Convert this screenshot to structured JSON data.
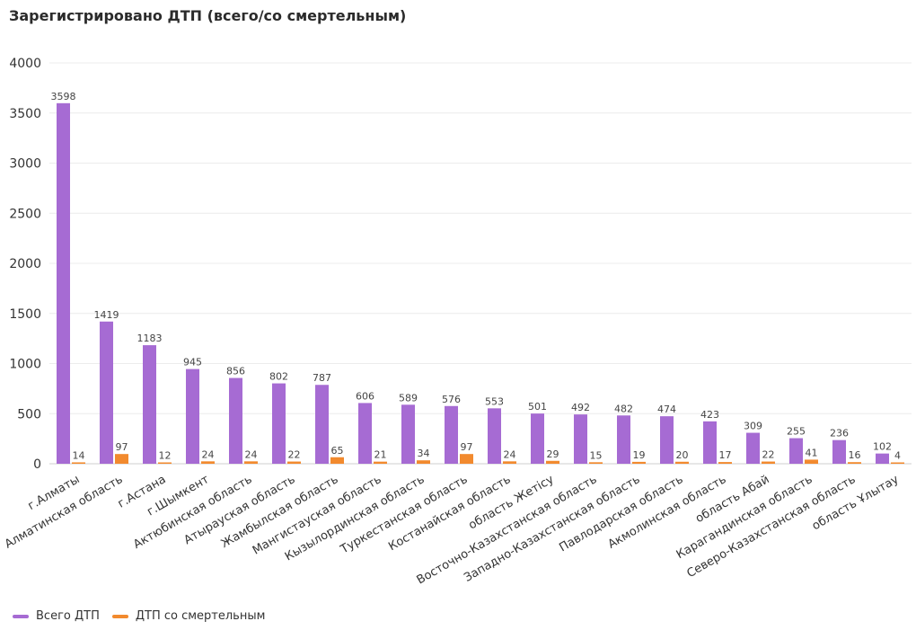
{
  "chart_data": {
    "type": "bar",
    "title": "Зарегистрировано ДТП (всего/со смертельным)",
    "ylim": [
      0,
      4000
    ],
    "yticks": [
      0,
      500,
      1000,
      1500,
      2000,
      2500,
      3000,
      3500,
      4000
    ],
    "grid": true,
    "legend_position": "bottom-left",
    "categories": [
      "г.Алматы",
      "Алматинская область",
      "г.Астана",
      "г.Шымкент",
      "Актюбинская область",
      "Атырауская область",
      "Жамбылская область",
      "Мангистауская область",
      "Кызылординская область",
      "Туркестанская область",
      "Костанайская область",
      "область Жетісу",
      "Восточно-Казахстанская область",
      "Западно-Казахстанская область",
      "Павлодарская область",
      "Акмолинская область",
      "область Абай",
      "Карагандинская область",
      "Северо-Казахстанская область",
      "область Ұлытау"
    ],
    "series": [
      {
        "name": "Всего ДТП",
        "color": "#a66bd3",
        "values": [
          3598,
          1419,
          1183,
          945,
          856,
          802,
          787,
          606,
          589,
          576,
          553,
          501,
          492,
          482,
          474,
          423,
          309,
          255,
          236,
          102
        ]
      },
      {
        "name": "ДТП со смертельным",
        "color": "#f28a2e",
        "values": [
          14,
          97,
          12,
          24,
          24,
          22,
          65,
          21,
          34,
          97,
          24,
          29,
          15,
          19,
          20,
          17,
          22,
          41,
          16,
          4
        ]
      }
    ]
  }
}
